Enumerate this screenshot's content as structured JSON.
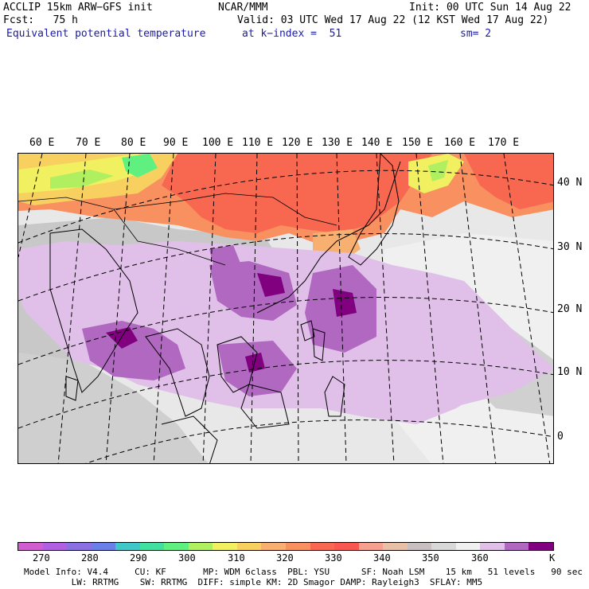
{
  "header": {
    "model": "ACCLIP 15km ARW−GFS init",
    "org": "NCAR/MMM",
    "init": "Init: 00 UTC Sun 14 Aug 22",
    "fcst": "Fcst:   75 h",
    "valid": "Valid: 03 UTC Wed 17 Aug 22 (12 KST Wed 17 Aug 22)",
    "field": "Equivalent potential temperature",
    "level": "at k−index =  51",
    "smooth": "sm= 2"
  },
  "map": {
    "lon_labels": [
      "60 E",
      "70 E",
      "80 E",
      "90 E",
      "100 E",
      "110 E",
      "120 E",
      "130 E",
      "140 E",
      "150 E",
      "160 E",
      "170 E"
    ],
    "lat_labels": [
      "40 N",
      "30 N",
      "20 N",
      "10 N",
      "0"
    ]
  },
  "colorbar": {
    "colors": [
      "#d05ed0",
      "#b060e0",
      "#8a70e0",
      "#6a80e8",
      "#40c8c8",
      "#40e0a0",
      "#60f080",
      "#b0f060",
      "#f0f060",
      "#f8d060",
      "#f8b070",
      "#f89060",
      "#f86850",
      "#f85850",
      "#f8a090",
      "#e8c0a8",
      "#c8c0c0",
      "#d8d8d8",
      "#f0f0f0",
      "#e0c0e8",
      "#b068c0",
      "#800080"
    ],
    "ticks": [
      "270",
      "280",
      "290",
      "300",
      "310",
      "320",
      "330",
      "340",
      "350",
      "360",
      "K"
    ],
    "units": "K"
  },
  "footer": {
    "line1": "Model Info: V4.4     CU: KF       MP: WDM 6class  PBL: YSU      SF: Noah LSM    15 km   51 levels   90 sec",
    "line2": "         LW: RRTMG    SW: RRTMG  DIFF: simple KM: 2D Smagor DAMP: Rayleigh3  SFLAY: MM5"
  }
}
